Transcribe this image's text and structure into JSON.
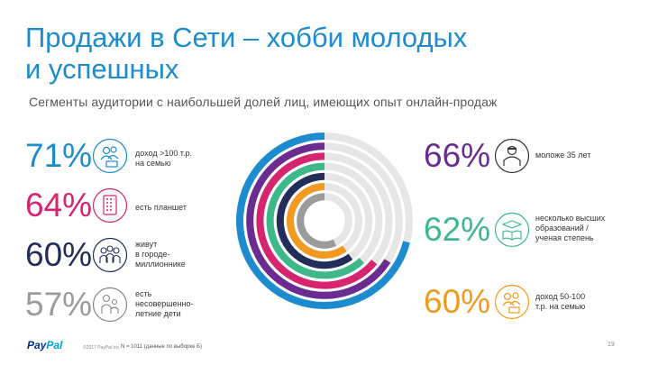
{
  "header": {
    "title_line1": "Продажи в Сети – хобби молодых",
    "title_line2": "и успешных",
    "subtitle": "Сегменты аудитории с наибольшей долей лиц, имеющих опыт онлайн-продаж"
  },
  "left_stats": [
    {
      "value": "71%",
      "label": "доход >100 т.р.\nна семью",
      "color": "#1d8ccf",
      "icon": "income-family-icon"
    },
    {
      "value": "64%",
      "label": "есть планшет",
      "color": "#d6246e",
      "icon": "tablet-icon"
    },
    {
      "value": "60%",
      "label": "живут\nв городе-\nмиллионнике",
      "color": "#232d5a",
      "icon": "city-crowd-icon"
    },
    {
      "value": "57%",
      "label": "есть\nнесовершенно-\nлетние дети",
      "color": "#9b9b9b",
      "icon": "children-icon"
    }
  ],
  "right_stats": [
    {
      "value": "66%",
      "label": "моложе 35 лет",
      "color": "#6b2c91",
      "icon": "young-person-icon"
    },
    {
      "value": "62%",
      "label": "несколько высших\nобразований /\nученая степень",
      "color": "#3cb88a",
      "icon": "education-icon"
    },
    {
      "value": "60%",
      "label": "доход 50-100\nт.р. на семью",
      "color": "#f29a1f",
      "icon": "income-mid-icon"
    }
  ],
  "chart_data": {
    "type": "radial-bar",
    "title": "",
    "max": 100,
    "track_color": "#e6e6e6",
    "series": [
      {
        "name": "доход >100 т.р. на семью",
        "value": 71,
        "color": "#1d8ccf"
      },
      {
        "name": "моложе 35 лет",
        "value": 66,
        "color": "#6b2c91"
      },
      {
        "name": "есть планшет",
        "value": 64,
        "color": "#d6246e"
      },
      {
        "name": "несколько высших образований / ученая степень",
        "value": 62,
        "color": "#3cb88a"
      },
      {
        "name": "живут в городе-миллионнике",
        "value": 60,
        "color": "#232d5a"
      },
      {
        "name": "доход 50-100 т.р. на семью",
        "value": 60,
        "color": "#f29a1f"
      },
      {
        "name": "есть несовершеннолетние дети",
        "value": 57,
        "color": "#9b9b9b"
      }
    ]
  },
  "footer": {
    "logo_part1": "Pay",
    "logo_part2": "Pal",
    "copyright": "©2017 PayPal Inc.",
    "note": "N = 1011 (данные по выборке Б)",
    "page": "19"
  }
}
